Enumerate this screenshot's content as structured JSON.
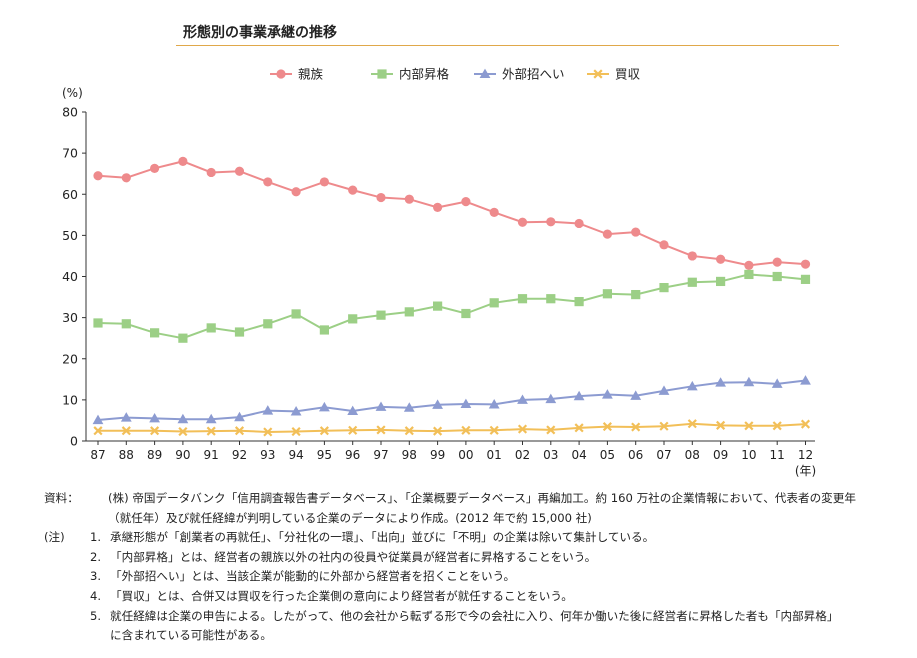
{
  "title": "形態別の事業承継の推移",
  "chart_data": {
    "type": "line",
    "ylabel": "(%)",
    "xlabel_unit": "(年)",
    "ylim": [
      0,
      80
    ],
    "yticks": [
      0,
      10,
      20,
      30,
      40,
      50,
      60,
      70,
      80
    ],
    "grid": false,
    "legend_position": "top-center",
    "categories": [
      "87",
      "88",
      "89",
      "90",
      "91",
      "92",
      "93",
      "94",
      "95",
      "96",
      "97",
      "98",
      "99",
      "00",
      "01",
      "02",
      "03",
      "04",
      "05",
      "06",
      "07",
      "08",
      "09",
      "10",
      "11",
      "12"
    ],
    "series": [
      {
        "name": "親族",
        "color": "#ee8a8c",
        "marker": "circle",
        "values": [
          64.5,
          64.0,
          66.3,
          68.0,
          65.3,
          65.6,
          63.0,
          60.6,
          63.0,
          61.0,
          59.2,
          58.8,
          56.8,
          58.2,
          55.6,
          53.2,
          53.3,
          52.9,
          50.3,
          50.8,
          47.7,
          45.0,
          44.2,
          42.7,
          43.5,
          43.0
        ]
      },
      {
        "name": "内部昇格",
        "color": "#9ccf86",
        "marker": "square",
        "values": [
          28.7,
          28.5,
          26.3,
          25.0,
          27.5,
          26.5,
          28.5,
          30.9,
          27.0,
          29.7,
          30.6,
          31.4,
          32.8,
          31.0,
          33.6,
          34.6,
          34.6,
          33.9,
          35.8,
          35.6,
          37.3,
          38.6,
          38.8,
          40.5,
          40.0,
          39.3
        ]
      },
      {
        "name": "外部招へい",
        "color": "#8c9bd1",
        "marker": "triangle",
        "values": [
          5.1,
          5.7,
          5.5,
          5.3,
          5.3,
          5.8,
          7.4,
          7.2,
          8.2,
          7.3,
          8.3,
          8.1,
          8.8,
          9.0,
          8.9,
          10.0,
          10.2,
          10.9,
          11.3,
          11.0,
          12.2,
          13.3,
          14.2,
          14.3,
          13.9,
          14.7
        ]
      },
      {
        "name": "買収",
        "color": "#f2bf58",
        "marker": "cross",
        "values": [
          2.5,
          2.5,
          2.5,
          2.3,
          2.4,
          2.5,
          2.2,
          2.3,
          2.5,
          2.6,
          2.7,
          2.5,
          2.4,
          2.6,
          2.6,
          2.9,
          2.7,
          3.2,
          3.5,
          3.4,
          3.6,
          4.2,
          3.8,
          3.7,
          3.7,
          4.1
        ]
      }
    ]
  },
  "notes": {
    "source_label": "資料：",
    "source_text": "(株) 帝国データバンク「信用調査報告書データベース」、「企業概要データベース」再編加工。約 160 万社の企業情報において、代表者の変更年（就任年）及び就任経緯が判明している企業のデータにより作成。(2012 年で約 15,000 社)",
    "notes_label": "(注)",
    "items": [
      {
        "num": "1.",
        "text": "承継形態が「創業者の再就任」、「分社化の一環」、「出向」並びに「不明」の企業は除いて集計している。"
      },
      {
        "num": "2.",
        "text": "「内部昇格」とは、経営者の親族以外の社内の役員や従業員が経営者に昇格することをいう。"
      },
      {
        "num": "3.",
        "text": "「外部招へい」とは、当該企業が能動的に外部から経営者を招くことをいう。"
      },
      {
        "num": "4.",
        "text": "「買収」とは、合併又は買収を行った企業側の意向により経営者が就任することをいう。"
      },
      {
        "num": "5.",
        "text": "就任経緯は企業の申告による。したがって、他の会社から転ずる形で今の会社に入り、何年か働いた後に経営者に昇格した者も「内部昇格」に含まれている可能性がある。"
      }
    ]
  }
}
